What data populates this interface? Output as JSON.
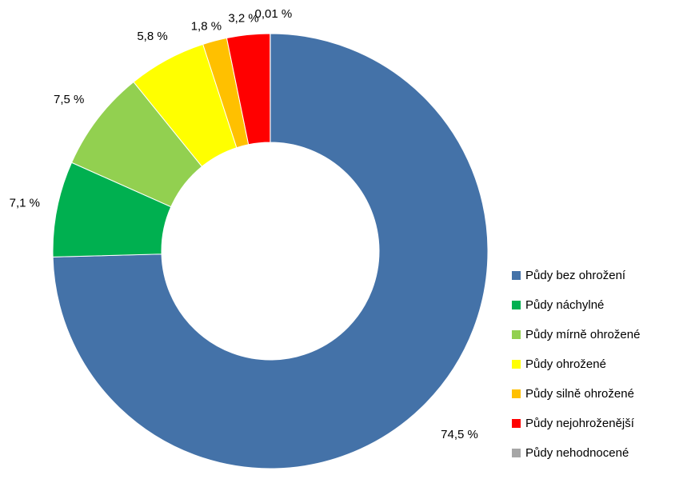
{
  "chart_data": {
    "type": "pie",
    "subtype": "donut",
    "title": "",
    "categories": [
      "Půdy bez ohrožení",
      "Půdy náchylné",
      "Půdy mírně ohrožené",
      "Půdy ohrožené",
      "Půdy silně ohrožené",
      "Půdy nejohroženější",
      "Půdy nehodnocené"
    ],
    "values": [
      74.5,
      7.1,
      7.5,
      5.8,
      1.8,
      3.2,
      0.01
    ],
    "data_labels": [
      "74,5 %",
      "7,1 %",
      "7,5 %",
      "5,8 %",
      "1,8 %",
      "3,2 %",
      "0,01 %"
    ],
    "colors": [
      "#4472a8",
      "#00b050",
      "#92d050",
      "#ffff00",
      "#ffc000",
      "#ff0000",
      "#a6a6a6"
    ],
    "legend_position": "right-bottom",
    "slice_order": "clockwise from top"
  }
}
